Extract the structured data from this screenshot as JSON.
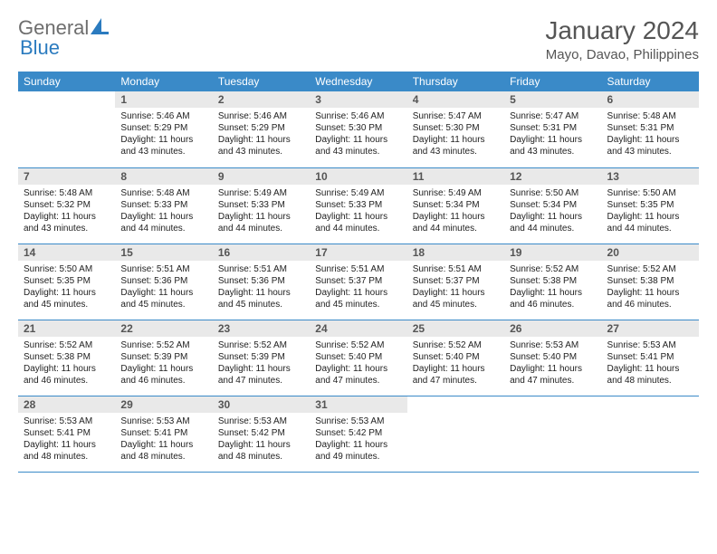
{
  "brand": {
    "part1": "General",
    "part2": "Blue",
    "text_color": "#6e6e6e",
    "accent_color": "#2b7bbf"
  },
  "title": "January 2024",
  "location": "Mayo, Davao, Philippines",
  "header_bg": "#3a8ac8",
  "header_fg": "#ffffff",
  "daynum_bg": "#e9e9e9",
  "border_color": "#3a8ac8",
  "weekdays": [
    "Sunday",
    "Monday",
    "Tuesday",
    "Wednesday",
    "Thursday",
    "Friday",
    "Saturday"
  ],
  "cells": [
    {
      "n": "",
      "sr": "",
      "ss": "",
      "dl": ""
    },
    {
      "n": "1",
      "sr": "Sunrise: 5:46 AM",
      "ss": "Sunset: 5:29 PM",
      "dl": "Daylight: 11 hours and 43 minutes."
    },
    {
      "n": "2",
      "sr": "Sunrise: 5:46 AM",
      "ss": "Sunset: 5:29 PM",
      "dl": "Daylight: 11 hours and 43 minutes."
    },
    {
      "n": "3",
      "sr": "Sunrise: 5:46 AM",
      "ss": "Sunset: 5:30 PM",
      "dl": "Daylight: 11 hours and 43 minutes."
    },
    {
      "n": "4",
      "sr": "Sunrise: 5:47 AM",
      "ss": "Sunset: 5:30 PM",
      "dl": "Daylight: 11 hours and 43 minutes."
    },
    {
      "n": "5",
      "sr": "Sunrise: 5:47 AM",
      "ss": "Sunset: 5:31 PM",
      "dl": "Daylight: 11 hours and 43 minutes."
    },
    {
      "n": "6",
      "sr": "Sunrise: 5:48 AM",
      "ss": "Sunset: 5:31 PM",
      "dl": "Daylight: 11 hours and 43 minutes."
    },
    {
      "n": "7",
      "sr": "Sunrise: 5:48 AM",
      "ss": "Sunset: 5:32 PM",
      "dl": "Daylight: 11 hours and 43 minutes."
    },
    {
      "n": "8",
      "sr": "Sunrise: 5:48 AM",
      "ss": "Sunset: 5:33 PM",
      "dl": "Daylight: 11 hours and 44 minutes."
    },
    {
      "n": "9",
      "sr": "Sunrise: 5:49 AM",
      "ss": "Sunset: 5:33 PM",
      "dl": "Daylight: 11 hours and 44 minutes."
    },
    {
      "n": "10",
      "sr": "Sunrise: 5:49 AM",
      "ss": "Sunset: 5:33 PM",
      "dl": "Daylight: 11 hours and 44 minutes."
    },
    {
      "n": "11",
      "sr": "Sunrise: 5:49 AM",
      "ss": "Sunset: 5:34 PM",
      "dl": "Daylight: 11 hours and 44 minutes."
    },
    {
      "n": "12",
      "sr": "Sunrise: 5:50 AM",
      "ss": "Sunset: 5:34 PM",
      "dl": "Daylight: 11 hours and 44 minutes."
    },
    {
      "n": "13",
      "sr": "Sunrise: 5:50 AM",
      "ss": "Sunset: 5:35 PM",
      "dl": "Daylight: 11 hours and 44 minutes."
    },
    {
      "n": "14",
      "sr": "Sunrise: 5:50 AM",
      "ss": "Sunset: 5:35 PM",
      "dl": "Daylight: 11 hours and 45 minutes."
    },
    {
      "n": "15",
      "sr": "Sunrise: 5:51 AM",
      "ss": "Sunset: 5:36 PM",
      "dl": "Daylight: 11 hours and 45 minutes."
    },
    {
      "n": "16",
      "sr": "Sunrise: 5:51 AM",
      "ss": "Sunset: 5:36 PM",
      "dl": "Daylight: 11 hours and 45 minutes."
    },
    {
      "n": "17",
      "sr": "Sunrise: 5:51 AM",
      "ss": "Sunset: 5:37 PM",
      "dl": "Daylight: 11 hours and 45 minutes."
    },
    {
      "n": "18",
      "sr": "Sunrise: 5:51 AM",
      "ss": "Sunset: 5:37 PM",
      "dl": "Daylight: 11 hours and 45 minutes."
    },
    {
      "n": "19",
      "sr": "Sunrise: 5:52 AM",
      "ss": "Sunset: 5:38 PM",
      "dl": "Daylight: 11 hours and 46 minutes."
    },
    {
      "n": "20",
      "sr": "Sunrise: 5:52 AM",
      "ss": "Sunset: 5:38 PM",
      "dl": "Daylight: 11 hours and 46 minutes."
    },
    {
      "n": "21",
      "sr": "Sunrise: 5:52 AM",
      "ss": "Sunset: 5:38 PM",
      "dl": "Daylight: 11 hours and 46 minutes."
    },
    {
      "n": "22",
      "sr": "Sunrise: 5:52 AM",
      "ss": "Sunset: 5:39 PM",
      "dl": "Daylight: 11 hours and 46 minutes."
    },
    {
      "n": "23",
      "sr": "Sunrise: 5:52 AM",
      "ss": "Sunset: 5:39 PM",
      "dl": "Daylight: 11 hours and 47 minutes."
    },
    {
      "n": "24",
      "sr": "Sunrise: 5:52 AM",
      "ss": "Sunset: 5:40 PM",
      "dl": "Daylight: 11 hours and 47 minutes."
    },
    {
      "n": "25",
      "sr": "Sunrise: 5:52 AM",
      "ss": "Sunset: 5:40 PM",
      "dl": "Daylight: 11 hours and 47 minutes."
    },
    {
      "n": "26",
      "sr": "Sunrise: 5:53 AM",
      "ss": "Sunset: 5:40 PM",
      "dl": "Daylight: 11 hours and 47 minutes."
    },
    {
      "n": "27",
      "sr": "Sunrise: 5:53 AM",
      "ss": "Sunset: 5:41 PM",
      "dl": "Daylight: 11 hours and 48 minutes."
    },
    {
      "n": "28",
      "sr": "Sunrise: 5:53 AM",
      "ss": "Sunset: 5:41 PM",
      "dl": "Daylight: 11 hours and 48 minutes."
    },
    {
      "n": "29",
      "sr": "Sunrise: 5:53 AM",
      "ss": "Sunset: 5:41 PM",
      "dl": "Daylight: 11 hours and 48 minutes."
    },
    {
      "n": "30",
      "sr": "Sunrise: 5:53 AM",
      "ss": "Sunset: 5:42 PM",
      "dl": "Daylight: 11 hours and 48 minutes."
    },
    {
      "n": "31",
      "sr": "Sunrise: 5:53 AM",
      "ss": "Sunset: 5:42 PM",
      "dl": "Daylight: 11 hours and 49 minutes."
    },
    {
      "n": "",
      "sr": "",
      "ss": "",
      "dl": ""
    },
    {
      "n": "",
      "sr": "",
      "ss": "",
      "dl": ""
    },
    {
      "n": "",
      "sr": "",
      "ss": "",
      "dl": ""
    }
  ]
}
